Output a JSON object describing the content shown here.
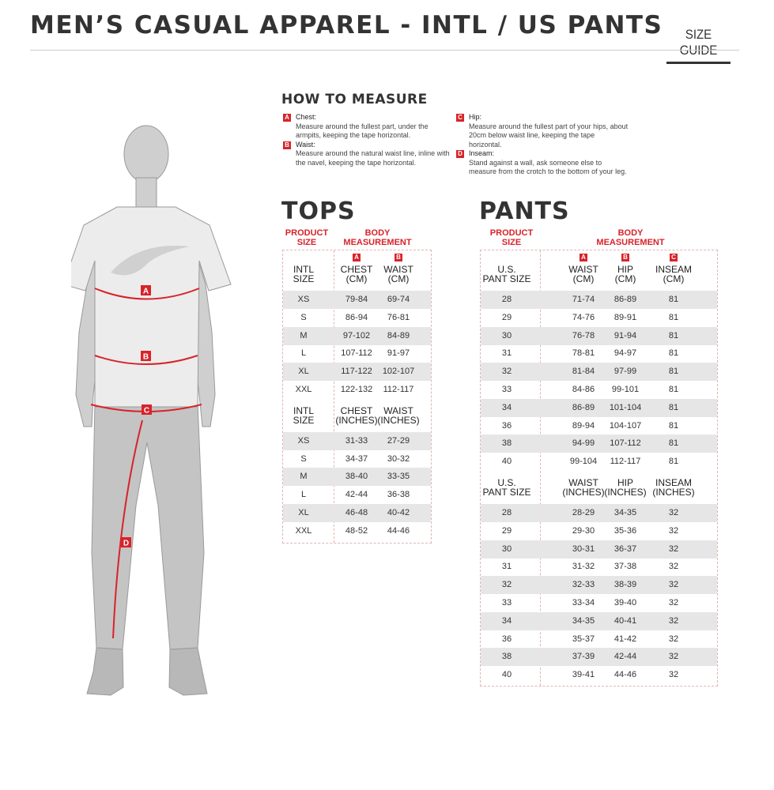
{
  "header": {
    "title": "MEN’S CASUAL APPAREL - INTL / US PANTS",
    "size_guide": "SIZE GUIDE"
  },
  "how_to_measure": {
    "title": "HOW TO MEASURE",
    "items": [
      {
        "letter": "A",
        "label": "Chest:",
        "text": "Measure around the fullest part, under the armpits, keeping the tape horizontal."
      },
      {
        "letter": "B",
        "label": "Waist:",
        "text": "Measure around the natural waist line, inline with the navel, keeping the tape horizontal."
      },
      {
        "letter": "C",
        "label": "Hip:",
        "text": "Measure around the fullest part of your hips, about 20cm below waist line, keeping the tape horizontal."
      },
      {
        "letter": "D",
        "label": "Inseam:",
        "text": "Stand against a wall, ask someone else to measure from the crotch to the bottom of your leg."
      }
    ]
  },
  "figure": {
    "markers": [
      "A",
      "B",
      "C",
      "D"
    ]
  },
  "colors": {
    "accent": "#d8232a",
    "row_shade": "#e6e6e6",
    "text": "#333333"
  },
  "tops": {
    "title": "TOPS",
    "product_size": "PRODUCT\nSIZE",
    "body_measurement": "BODY\nMEASUREMENT",
    "cm": {
      "headers": [
        "INTL\nSIZE",
        "CHEST\n(CM)",
        "WAIST\n(CM)"
      ],
      "letters": [
        "",
        "A",
        "B"
      ],
      "rows": [
        [
          "XS",
          "79-84",
          "69-74"
        ],
        [
          "S",
          "86-94",
          "76-81"
        ],
        [
          "M",
          "97-102",
          "84-89"
        ],
        [
          "L",
          "107-112",
          "91-97"
        ],
        [
          "XL",
          "117-122",
          "102-107"
        ],
        [
          "XXL",
          "122-132",
          "112-117"
        ]
      ]
    },
    "inches": {
      "headers": [
        "INTL\nSIZE",
        "CHEST\n(INCHES)",
        "WAIST\n(INCHES)"
      ],
      "letters": [
        "",
        "",
        ""
      ],
      "rows": [
        [
          "XS",
          "31-33",
          "27-29"
        ],
        [
          "S",
          "34-37",
          "30-32"
        ],
        [
          "M",
          "38-40",
          "33-35"
        ],
        [
          "L",
          "42-44",
          "36-38"
        ],
        [
          "XL",
          "46-48",
          "40-42"
        ],
        [
          "XXL",
          "48-52",
          "44-46"
        ]
      ]
    }
  },
  "pants": {
    "title": "PANTS",
    "product_size": "PRODUCT\nSIZE",
    "body_measurement": "BODY\nMEASUREMENT",
    "cm": {
      "headers": [
        "U.S.\nPANT SIZE",
        "WAIST\n(CM)",
        "HIP\n(CM)",
        "INSEAM\n(CM)"
      ],
      "letters": [
        "",
        "A",
        "B",
        "C"
      ],
      "rows": [
        [
          "28",
          "71-74",
          "86-89",
          "81"
        ],
        [
          "29",
          "74-76",
          "89-91",
          "81"
        ],
        [
          "30",
          "76-78",
          "91-94",
          "81"
        ],
        [
          "31",
          "78-81",
          "94-97",
          "81"
        ],
        [
          "32",
          "81-84",
          "97-99",
          "81"
        ],
        [
          "33",
          "84-86",
          "99-101",
          "81"
        ],
        [
          "34",
          "86-89",
          "101-104",
          "81"
        ],
        [
          "36",
          "89-94",
          "104-107",
          "81"
        ],
        [
          "38",
          "94-99",
          "107-112",
          "81"
        ],
        [
          "40",
          "99-104",
          "112-117",
          "81"
        ]
      ]
    },
    "inches": {
      "headers": [
        "U.S.\nPANT SIZE",
        "WAIST\n(INCHES)",
        "HIP\n(INCHES)",
        "INSEAM\n(INCHES)"
      ],
      "letters": [
        "",
        "",
        "",
        ""
      ],
      "rows": [
        [
          "28",
          "28-29",
          "34-35",
          "32"
        ],
        [
          "29",
          "29-30",
          "35-36",
          "32"
        ],
        [
          "30",
          "30-31",
          "36-37",
          "32"
        ],
        [
          "31",
          "31-32",
          "37-38",
          "32"
        ],
        [
          "32",
          "32-33",
          "38-39",
          "32"
        ],
        [
          "33",
          "33-34",
          "39-40",
          "32"
        ],
        [
          "34",
          "34-35",
          "40-41",
          "32"
        ],
        [
          "36",
          "35-37",
          "41-42",
          "32"
        ],
        [
          "38",
          "37-39",
          "42-44",
          "32"
        ],
        [
          "40",
          "39-41",
          "44-46",
          "32"
        ]
      ]
    }
  }
}
